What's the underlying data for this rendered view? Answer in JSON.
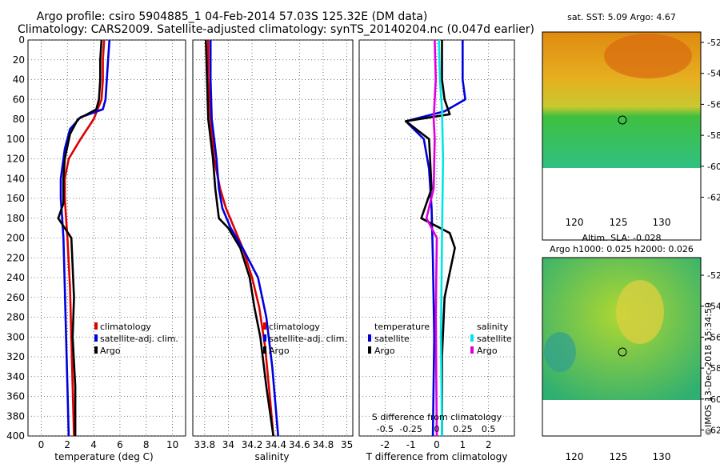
{
  "title": {
    "line1": "Argo profile: csiro 5904885_1 04-Feb-2014 57.03S 125.32E (DM data)",
    "line2": "Climatology: CARS2009. Satellite-adjusted climatology: synTS_20140204.nc (0.047d earlier)"
  },
  "footer": "©IMOS 13-Dec-2018 15:34:59",
  "colors": {
    "climatology": "#dd0000",
    "satellite": "#0000dd",
    "argo": "#000000",
    "salinity_satellite": "#00e5e5",
    "salinity_argo": "#dd00dd"
  },
  "depth_axis": {
    "range": [
      0,
      400
    ],
    "ticks": [
      "0",
      "20",
      "40",
      "60",
      "80",
      "100",
      "120",
      "140",
      "160",
      "180",
      "200",
      "220",
      "240",
      "260",
      "280",
      "300",
      "320",
      "340",
      "360",
      "380",
      "400"
    ]
  },
  "map_sst": {
    "title": "sat. SST: 5.09 Argo: 4.67",
    "lat_ticks": [
      "-52",
      "-54",
      "-56",
      "-58",
      "-60",
      "-62"
    ],
    "lon_ticks": [
      "120",
      "125",
      "130"
    ],
    "marker": {
      "lon": 125.32,
      "lat": -57.03
    }
  },
  "map_sla": {
    "title1": "Altim. SLA: -0.028",
    "title2": "Argo h1000: 0.025 h2000: 0.026",
    "lat_ticks": [
      "-52",
      "-54",
      "-56",
      "-58",
      "-60",
      "-62"
    ],
    "lon_ticks": [
      "120",
      "125",
      "130"
    ],
    "marker": {
      "lon": 125.32,
      "lat": -57.03
    }
  },
  "chart_data": [
    {
      "type": "line",
      "name": "temperature",
      "xlabel": "temperature (deg C)",
      "ylabel": "depth",
      "xlim": [
        -1,
        11
      ],
      "ylim": [
        400,
        0
      ],
      "xticks": [
        "0",
        "2",
        "4",
        "6",
        "8",
        "10"
      ],
      "legend": [
        "climatology",
        "satellite-adj. clim.",
        "Argo"
      ],
      "series": [
        {
          "name": "climatology",
          "points": [
            [
              4.8,
              0
            ],
            [
              4.7,
              20
            ],
            [
              4.7,
              40
            ],
            [
              4.6,
              60
            ],
            [
              4.0,
              80
            ],
            [
              3.0,
              100
            ],
            [
              2.1,
              120
            ],
            [
              1.8,
              140
            ],
            [
              1.8,
              160
            ],
            [
              1.9,
              180
            ],
            [
              2.0,
              200
            ],
            [
              2.2,
              250
            ],
            [
              2.3,
              300
            ],
            [
              2.4,
              350
            ],
            [
              2.5,
              400
            ]
          ]
        },
        {
          "name": "satellite-adj. clim.",
          "points": [
            [
              5.2,
              0
            ],
            [
              5.1,
              20
            ],
            [
              5.0,
              40
            ],
            [
              4.9,
              60
            ],
            [
              4.7,
              70
            ],
            [
              3.0,
              78
            ],
            [
              2.2,
              90
            ],
            [
              1.8,
              110
            ],
            [
              1.5,
              140
            ],
            [
              1.5,
              160
            ],
            [
              1.6,
              180
            ],
            [
              1.7,
              200
            ],
            [
              1.8,
              250
            ],
            [
              1.9,
              300
            ],
            [
              2.0,
              350
            ],
            [
              2.1,
              400
            ]
          ]
        },
        {
          "name": "Argo",
          "points": [
            [
              4.6,
              0
            ],
            [
              4.5,
              20
            ],
            [
              4.5,
              40
            ],
            [
              4.4,
              60
            ],
            [
              4.2,
              70
            ],
            [
              2.8,
              80
            ],
            [
              2.2,
              95
            ],
            [
              1.8,
              120
            ],
            [
              1.7,
              140
            ],
            [
              1.7,
              165
            ],
            [
              1.3,
              180
            ],
            [
              1.8,
              190
            ],
            [
              2.3,
              200
            ],
            [
              2.5,
              260
            ],
            [
              2.4,
              300
            ],
            [
              2.6,
              350
            ],
            [
              2.6,
              400
            ]
          ]
        }
      ]
    },
    {
      "type": "line",
      "name": "salinity",
      "xlabel": "salinity",
      "ylabel": "depth",
      "xlim": [
        33.7,
        35.05
      ],
      "ylim": [
        400,
        0
      ],
      "xticks": [
        "33.8",
        "34",
        "34.2",
        "34.4",
        "34.6",
        "34.8",
        "35"
      ],
      "legend": [
        "climatology",
        "satellite-adj. clim.",
        "Argo"
      ],
      "series": [
        {
          "name": "climatology",
          "points": [
            [
              33.83,
              0
            ],
            [
              33.83,
              40
            ],
            [
              33.85,
              80
            ],
            [
              33.88,
              120
            ],
            [
              33.93,
              150
            ],
            [
              33.98,
              170
            ],
            [
              34.05,
              190
            ],
            [
              34.12,
              210
            ],
            [
              34.2,
              240
            ],
            [
              34.26,
              270
            ],
            [
              34.31,
              310
            ],
            [
              34.35,
              360
            ],
            [
              34.38,
              400
            ]
          ]
        },
        {
          "name": "satellite-adj. clim.",
          "points": [
            [
              33.85,
              0
            ],
            [
              33.85,
              40
            ],
            [
              33.86,
              80
            ],
            [
              33.88,
              100
            ],
            [
              33.9,
              120
            ],
            [
              33.92,
              150
            ],
            [
              33.95,
              170
            ],
            [
              34.02,
              190
            ],
            [
              34.12,
              210
            ],
            [
              34.25,
              240
            ],
            [
              34.32,
              280
            ],
            [
              34.37,
              330
            ],
            [
              34.42,
              400
            ]
          ]
        },
        {
          "name": "Argo",
          "points": [
            [
              33.81,
              0
            ],
            [
              33.82,
              40
            ],
            [
              33.83,
              80
            ],
            [
              33.87,
              120
            ],
            [
              33.89,
              150
            ],
            [
              33.92,
              180
            ],
            [
              34.0,
              190
            ],
            [
              34.1,
              210
            ],
            [
              34.18,
              240
            ],
            [
              34.22,
              270
            ],
            [
              34.27,
              300
            ],
            [
              34.32,
              350
            ],
            [
              34.38,
              400
            ]
          ]
        }
      ]
    },
    {
      "type": "line",
      "name": "difference",
      "xlabel": "T difference from climatology",
      "xlabel_top": "S difference from climatology",
      "ylim": [
        400,
        0
      ],
      "xlim": [
        -3,
        3
      ],
      "xticks": [
        "-2",
        "-1",
        "0",
        "1",
        "2"
      ],
      "top_xlim": [
        -0.75,
        0.75
      ],
      "top_xticks": [
        "-0.5",
        "-0.25",
        "0",
        "0.25",
        "0.5"
      ],
      "legend_temperature_title": "temperature",
      "legend_temperature": [
        "satellite",
        "Argo"
      ],
      "legend_salinity_title": "salinity",
      "legend_salinity": [
        "satellite",
        "Argo"
      ],
      "series": [
        {
          "name": "temperature satellite",
          "axis": "T",
          "points": [
            [
              1.0,
              0
            ],
            [
              1.0,
              40
            ],
            [
              1.1,
              60
            ],
            [
              0.3,
              72
            ],
            [
              -1.2,
              82
            ],
            [
              -0.5,
              100
            ],
            [
              -0.3,
              130
            ],
            [
              -0.2,
              170
            ],
            [
              -0.15,
              220
            ],
            [
              -0.1,
              300
            ],
            [
              -0.15,
              400
            ]
          ]
        },
        {
          "name": "temperature Argo",
          "axis": "T",
          "points": [
            [
              0.2,
              0
            ],
            [
              0.2,
              40
            ],
            [
              0.3,
              60
            ],
            [
              0.5,
              75
            ],
            [
              -1.2,
              82
            ],
            [
              -0.3,
              100
            ],
            [
              -0.2,
              150
            ],
            [
              -0.6,
              180
            ],
            [
              0.5,
              195
            ],
            [
              0.7,
              210
            ],
            [
              0.3,
              260
            ],
            [
              0.2,
              320
            ],
            [
              0.2,
              400
            ]
          ]
        },
        {
          "name": "salinity satellite",
          "axis": "S",
          "points": [
            [
              0.02,
              0
            ],
            [
              0.03,
              40
            ],
            [
              0.05,
              70
            ],
            [
              0.06,
              120
            ],
            [
              0.05,
              200
            ],
            [
              0.04,
              300
            ],
            [
              0.05,
              400
            ]
          ]
        },
        {
          "name": "salinity Argo",
          "axis": "S",
          "points": [
            [
              -0.02,
              0
            ],
            [
              -0.01,
              40
            ],
            [
              -0.03,
              80
            ],
            [
              -0.02,
              100
            ],
            [
              -0.03,
              150
            ],
            [
              -0.1,
              180
            ],
            [
              0.0,
              200
            ],
            [
              -0.01,
              280
            ],
            [
              0.0,
              400
            ]
          ]
        }
      ]
    }
  ]
}
